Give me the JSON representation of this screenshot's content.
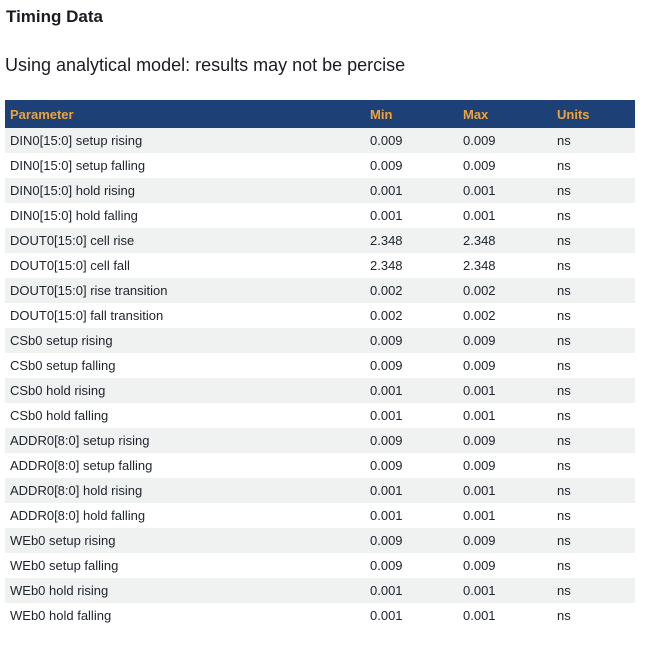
{
  "page": {
    "title": "Timing Data",
    "subtitle": "Using analytical model: results may not be percise"
  },
  "table": {
    "columns": {
      "parameter": "Parameter",
      "min": "Min",
      "max": "Max",
      "units": "Units"
    },
    "rows": [
      {
        "parameter": "DIN0[15:0] setup rising",
        "min": "0.009",
        "max": "0.009",
        "units": "ns"
      },
      {
        "parameter": "DIN0[15:0] setup falling",
        "min": "0.009",
        "max": "0.009",
        "units": "ns"
      },
      {
        "parameter": "DIN0[15:0] hold rising",
        "min": "0.001",
        "max": "0.001",
        "units": "ns"
      },
      {
        "parameter": "DIN0[15:0] hold falling",
        "min": "0.001",
        "max": "0.001",
        "units": "ns"
      },
      {
        "parameter": "DOUT0[15:0] cell rise",
        "min": "2.348",
        "max": "2.348",
        "units": "ns"
      },
      {
        "parameter": "DOUT0[15:0] cell fall",
        "min": "2.348",
        "max": "2.348",
        "units": "ns"
      },
      {
        "parameter": "DOUT0[15:0] rise transition",
        "min": "0.002",
        "max": "0.002",
        "units": "ns"
      },
      {
        "parameter": "DOUT0[15:0] fall transition",
        "min": "0.002",
        "max": "0.002",
        "units": "ns"
      },
      {
        "parameter": "CSb0 setup rising",
        "min": "0.009",
        "max": "0.009",
        "units": "ns"
      },
      {
        "parameter": "CSb0 setup falling",
        "min": "0.009",
        "max": "0.009",
        "units": "ns"
      },
      {
        "parameter": "CSb0 hold rising",
        "min": "0.001",
        "max": "0.001",
        "units": "ns"
      },
      {
        "parameter": "CSb0 hold falling",
        "min": "0.001",
        "max": "0.001",
        "units": "ns"
      },
      {
        "parameter": "ADDR0[8:0] setup rising",
        "min": "0.009",
        "max": "0.009",
        "units": "ns"
      },
      {
        "parameter": "ADDR0[8:0] setup falling",
        "min": "0.009",
        "max": "0.009",
        "units": "ns"
      },
      {
        "parameter": "ADDR0[8:0] hold rising",
        "min": "0.001",
        "max": "0.001",
        "units": "ns"
      },
      {
        "parameter": "ADDR0[8:0] hold falling",
        "min": "0.001",
        "max": "0.001",
        "units": "ns"
      },
      {
        "parameter": "WEb0 setup rising",
        "min": "0.009",
        "max": "0.009",
        "units": "ns"
      },
      {
        "parameter": "WEb0 setup falling",
        "min": "0.009",
        "max": "0.009",
        "units": "ns"
      },
      {
        "parameter": "WEb0 hold rising",
        "min": "0.001",
        "max": "0.001",
        "units": "ns"
      },
      {
        "parameter": "WEb0 hold falling",
        "min": "0.001",
        "max": "0.001",
        "units": "ns"
      }
    ]
  },
  "colors": {
    "header_bg": "#1d4077",
    "header_text": "#efa339",
    "row_alt_bg": "#f0f1f1",
    "body_text": "#20252e",
    "heading_text": "#1b1b24",
    "page_bg": "#ffffff"
  }
}
